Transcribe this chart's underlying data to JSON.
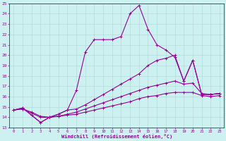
{
  "xlabel": "Windchill (Refroidissement éolien,°C)",
  "xlim": [
    -0.5,
    23.5
  ],
  "ylim": [
    13,
    25
  ],
  "xticks": [
    0,
    1,
    2,
    3,
    4,
    5,
    6,
    7,
    8,
    9,
    10,
    11,
    12,
    13,
    14,
    15,
    16,
    17,
    18,
    19,
    20,
    21,
    22,
    23
  ],
  "yticks": [
    13,
    14,
    15,
    16,
    17,
    18,
    19,
    20,
    21,
    22,
    23,
    24,
    25
  ],
  "bg_color": "#cdf0f0",
  "line_color": "#990099",
  "grid_color": "#aad8d8",
  "line1_x": [
    0,
    1,
    2,
    3,
    4,
    5,
    6,
    7,
    8,
    9,
    10,
    11,
    12,
    13,
    14,
    15,
    16,
    17,
    18,
    19,
    20,
    21,
    22,
    23
  ],
  "line1_y": [
    14.7,
    14.9,
    14.2,
    13.5,
    14.0,
    14.3,
    14.7,
    16.6,
    20.3,
    21.5,
    21.5,
    21.5,
    21.8,
    24.0,
    24.8,
    22.5,
    21.0,
    20.5,
    19.8,
    17.5,
    19.5,
    16.2,
    16.2,
    16.3
  ],
  "line2_x": [
    0,
    1,
    2,
    3,
    4,
    5,
    6,
    7,
    8,
    9,
    10,
    11,
    12,
    13,
    14,
    15,
    16,
    17,
    18,
    19,
    20,
    21,
    22,
    23
  ],
  "line2_y": [
    14.7,
    14.9,
    14.2,
    13.5,
    14.0,
    14.3,
    14.7,
    14.8,
    15.2,
    15.7,
    16.2,
    16.7,
    17.2,
    17.7,
    18.2,
    19.0,
    19.5,
    19.7,
    20.0,
    17.5,
    19.5,
    16.2,
    16.2,
    16.3
  ],
  "line3_x": [
    0,
    1,
    2,
    3,
    4,
    5,
    6,
    7,
    8,
    9,
    10,
    11,
    12,
    13,
    14,
    15,
    16,
    17,
    18,
    19,
    20,
    21,
    22,
    23
  ],
  "line3_y": [
    14.7,
    14.8,
    14.5,
    14.1,
    14.0,
    14.1,
    14.3,
    14.5,
    14.8,
    15.1,
    15.4,
    15.7,
    16.0,
    16.3,
    16.6,
    16.9,
    17.1,
    17.3,
    17.5,
    17.2,
    17.3,
    16.3,
    16.2,
    16.3
  ],
  "line4_x": [
    0,
    1,
    2,
    3,
    4,
    5,
    6,
    7,
    8,
    9,
    10,
    11,
    12,
    13,
    14,
    15,
    16,
    17,
    18,
    19,
    20,
    21,
    22,
    23
  ],
  "line4_y": [
    14.7,
    14.8,
    14.4,
    14.0,
    14.0,
    14.1,
    14.2,
    14.3,
    14.5,
    14.7,
    14.9,
    15.1,
    15.3,
    15.5,
    15.8,
    16.0,
    16.1,
    16.3,
    16.4,
    16.4,
    16.4,
    16.1,
    16.0,
    16.1
  ]
}
